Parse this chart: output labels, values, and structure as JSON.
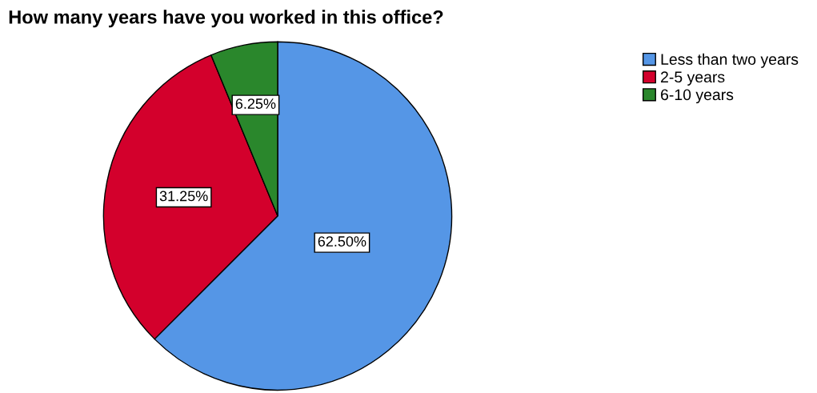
{
  "chart_data": {
    "type": "pie",
    "title": "How many years have you worked in this office?",
    "categories": [
      "Less than two years",
      "2-5 years",
      "6-10 years"
    ],
    "values": [
      62.5,
      31.25,
      6.25
    ],
    "colors": [
      "#5596e6",
      "#d3002c",
      "#2a872c"
    ],
    "value_labels": [
      "62.50%",
      "31.25%",
      "6.25%"
    ],
    "legend": "top right"
  }
}
